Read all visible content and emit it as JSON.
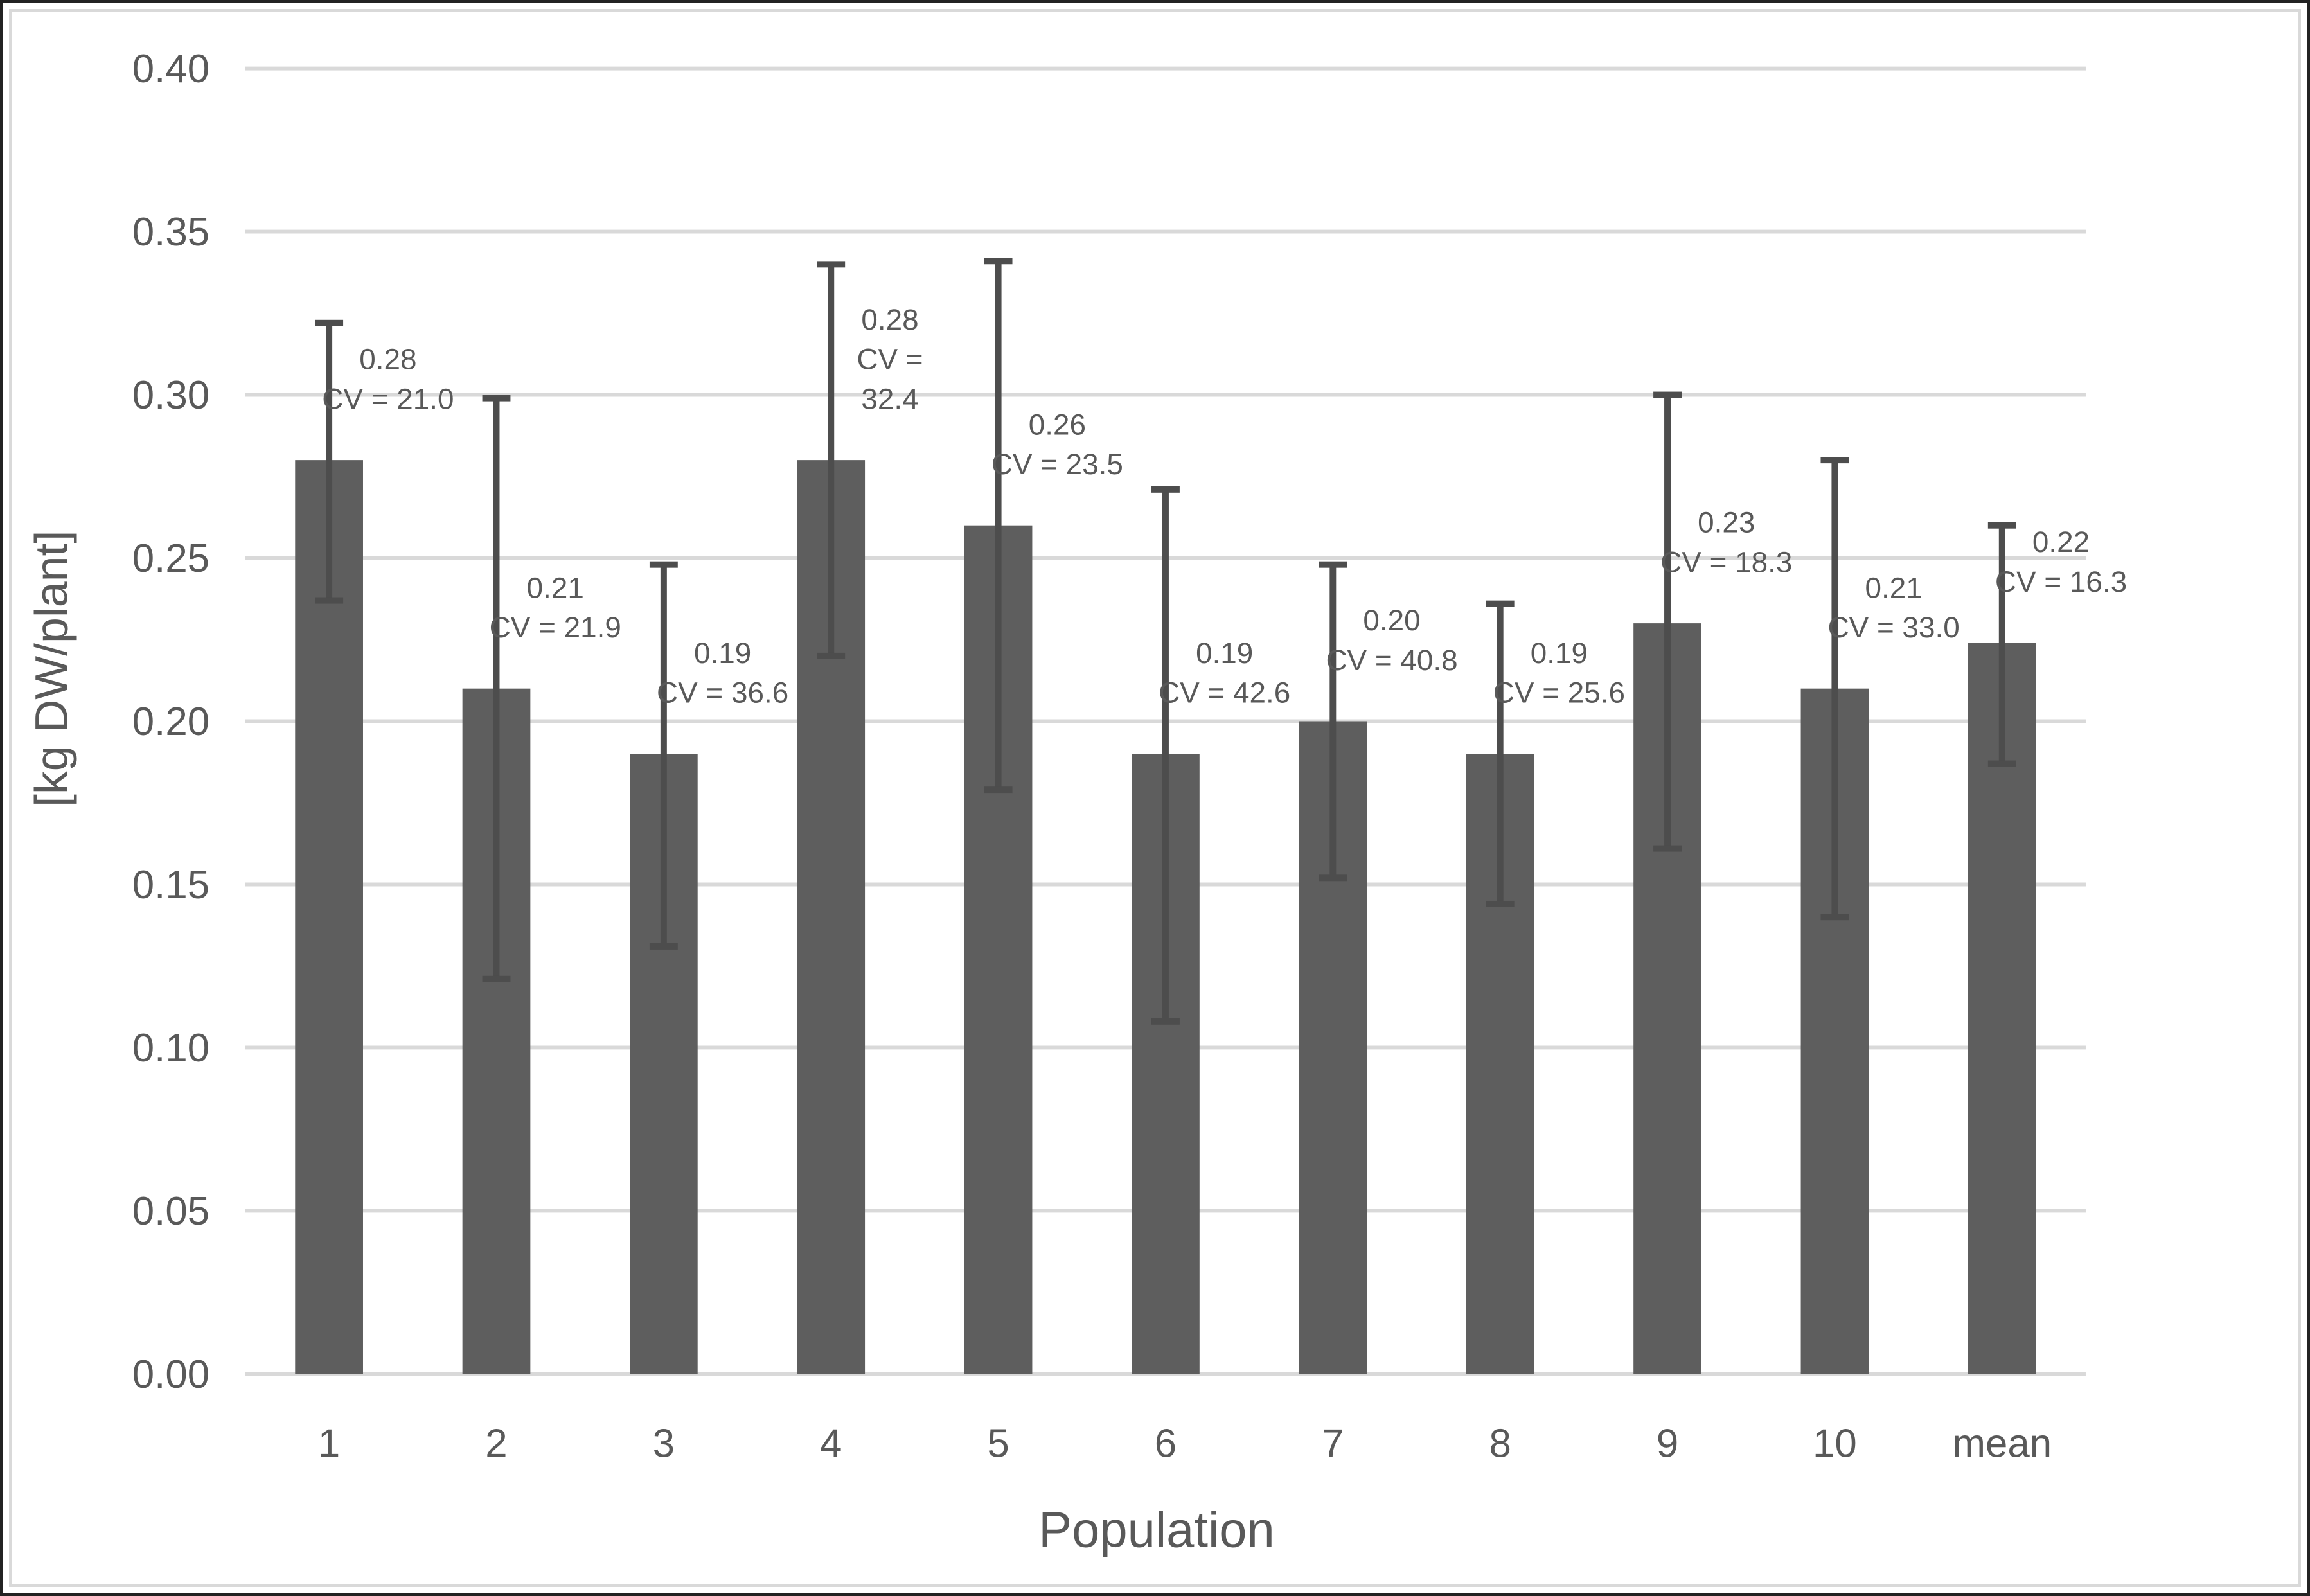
{
  "chart_data": {
    "type": "bar",
    "title": "",
    "xlabel": "Population",
    "ylabel": "[kg DW/plant]",
    "ylim": [
      0,
      0.4
    ],
    "ytick_step": 0.05,
    "ytick_labels": [
      "0.00",
      "0.05",
      "0.10",
      "0.15",
      "0.20",
      "0.25",
      "0.30",
      "0.35",
      "0.40"
    ],
    "grid": "horizontal",
    "legend_position": "none",
    "categories": [
      "1",
      "2",
      "3",
      "4",
      "5",
      "6",
      "7",
      "8",
      "9",
      "10",
      "mean"
    ],
    "values": [
      0.28,
      0.21,
      0.19,
      0.28,
      0.26,
      0.19,
      0.2,
      0.19,
      0.23,
      0.21,
      0.224
    ],
    "value_labels": [
      "0.28",
      "0.21",
      "0.19",
      "0.28",
      "0.26",
      "0.19",
      "0.20",
      "0.19",
      "0.23",
      "0.21",
      "0.22"
    ],
    "cv_percent": [
      21.0,
      21.9,
      36.6,
      32.4,
      23.5,
      42.6,
      40.8,
      25.6,
      18.3,
      33.0,
      16.3
    ],
    "error_bar_top": [
      0.322,
      0.299,
      0.248,
      0.34,
      0.341,
      0.271,
      0.248,
      0.236,
      0.3,
      0.28,
      0.26
    ],
    "error_bar_bottom": [
      0.237,
      0.121,
      0.131,
      0.22,
      0.179,
      0.108,
      0.152,
      0.144,
      0.161,
      0.14,
      0.187
    ],
    "point_annotations": [
      [
        "0.28",
        "CV = 21.0"
      ],
      [
        "0.21",
        "CV = 21.9"
      ],
      [
        "0.19",
        "CV = 36.6"
      ],
      [
        "0.28",
        "CV =",
        "32.4"
      ],
      [
        "0.26",
        "CV = 23.5"
      ],
      [
        "0.19",
        "CV = 42.6"
      ],
      [
        "0.20",
        "CV = 40.8"
      ],
      [
        "0.19",
        "CV = 25.6"
      ],
      [
        "0.23",
        "CV = 18.3"
      ],
      [
        "0.21",
        "CV = 33.0"
      ],
      [
        "0.22",
        "CV = 16.3"
      ]
    ],
    "colors": {
      "bar": "#5e5e5e",
      "error_bar": "#4d4d4d",
      "gridline": "#d9d9d9",
      "text": "#595959",
      "chart_border": "#d9d9d9",
      "page_border": "#222222"
    }
  }
}
